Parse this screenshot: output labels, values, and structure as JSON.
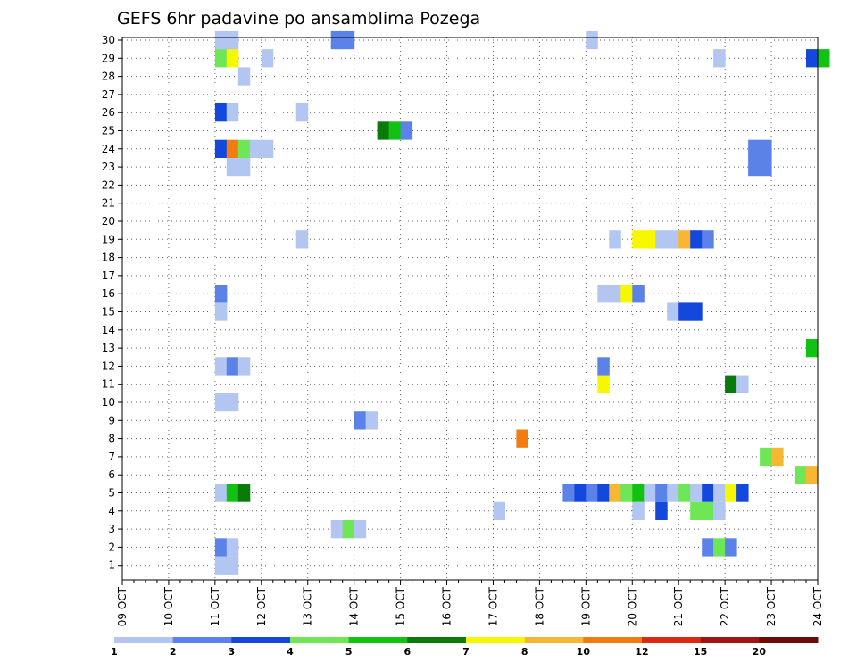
{
  "chart_data": {
    "type": "heatmap",
    "title": "GEFS 6hr padavine po ansamblima Pozega",
    "xlabel": "",
    "ylabel": "",
    "x_ticks": [
      "09 OCT",
      "10 OCT",
      "11 OCT",
      "12 OCT",
      "13 OCT",
      "14 OCT",
      "15 OCT",
      "16 OCT",
      "17 OCT",
      "18 OCT",
      "19 OCT",
      "20 OCT",
      "21 OCT",
      "22 OCT",
      "23 OCT",
      "24 OCT"
    ],
    "y_ticks": [
      "1",
      "2",
      "3",
      "4",
      "5",
      "6",
      "7",
      "8",
      "9",
      "10",
      "11",
      "12",
      "13",
      "14",
      "15",
      "16",
      "17",
      "18",
      "19",
      "20",
      "21",
      "22",
      "23",
      "24",
      "25",
      "26",
      "27",
      "28",
      "29",
      "30"
    ],
    "grid": "dotted",
    "legend_placement": "bottom",
    "x_step": "6hr",
    "legend": {
      "labels": [
        "1",
        "2",
        "3",
        "4",
        "5",
        "6",
        "7",
        "8",
        "10",
        "12",
        "15",
        "20"
      ],
      "colors": [
        "#b3c6f2",
        "#5b82e8",
        "#1448dc",
        "#6ee655",
        "#12c212",
        "#0a7a0a",
        "#f7f700",
        "#f7b733",
        "#f27c10",
        "#dc2a10",
        "#a01414",
        "#6e0a0a"
      ]
    },
    "cells": [
      {
        "m": 1,
        "x": "11 OCT 00Z",
        "v": 1
      },
      {
        "m": 1,
        "x": "11 OCT 06Z",
        "v": 1
      },
      {
        "m": 2,
        "x": "11 OCT 00Z",
        "v": 2
      },
      {
        "m": 2,
        "x": "11 OCT 06Z",
        "v": 1
      },
      {
        "m": 2,
        "x": "21 OCT 12Z",
        "v": 2
      },
      {
        "m": 2,
        "x": "21 OCT 18Z",
        "v": 4
      },
      {
        "m": 2,
        "x": "22 OCT 00Z",
        "v": 2
      },
      {
        "m": 3,
        "x": "13 OCT 12Z",
        "v": 1
      },
      {
        "m": 3,
        "x": "13 OCT 18Z",
        "v": 4
      },
      {
        "m": 3,
        "x": "14 OCT 00Z",
        "v": 1
      },
      {
        "m": 4,
        "x": "17 OCT 00Z",
        "v": 1
      },
      {
        "m": 4,
        "x": "20 OCT 00Z",
        "v": 1
      },
      {
        "m": 4,
        "x": "20 OCT 12Z",
        "v": 3
      },
      {
        "m": 4,
        "x": "21 OCT 06Z",
        "v": 4
      },
      {
        "m": 4,
        "x": "21 OCT 12Z",
        "v": 4
      },
      {
        "m": 4,
        "x": "21 OCT 18Z",
        "v": 1
      },
      {
        "m": 5,
        "x": "11 OCT 00Z",
        "v": 1
      },
      {
        "m": 5,
        "x": "11 OCT 06Z",
        "v": 5
      },
      {
        "m": 5,
        "x": "11 OCT 12Z",
        "v": 6
      },
      {
        "m": 5,
        "x": "18 OCT 12Z",
        "v": 2
      },
      {
        "m": 5,
        "x": "18 OCT 18Z",
        "v": 3
      },
      {
        "m": 5,
        "x": "19 OCT 00Z",
        "v": 2
      },
      {
        "m": 5,
        "x": "19 OCT 06Z",
        "v": 3
      },
      {
        "m": 5,
        "x": "19 OCT 12Z",
        "v": 8
      },
      {
        "m": 5,
        "x": "19 OCT 18Z",
        "v": 4
      },
      {
        "m": 5,
        "x": "20 OCT 00Z",
        "v": 5
      },
      {
        "m": 5,
        "x": "20 OCT 06Z",
        "v": 1
      },
      {
        "m": 5,
        "x": "20 OCT 12Z",
        "v": 2
      },
      {
        "m": 5,
        "x": "20 OCT 18Z",
        "v": 1
      },
      {
        "m": 5,
        "x": "21 OCT 00Z",
        "v": 4
      },
      {
        "m": 5,
        "x": "21 OCT 06Z",
        "v": 1
      },
      {
        "m": 5,
        "x": "21 OCT 12Z",
        "v": 3
      },
      {
        "m": 5,
        "x": "21 OCT 18Z",
        "v": 1
      },
      {
        "m": 5,
        "x": "22 OCT 00Z",
        "v": 7
      },
      {
        "m": 5,
        "x": "22 OCT 06Z",
        "v": 3
      },
      {
        "m": 6,
        "x": "23 OCT 12Z",
        "v": 4
      },
      {
        "m": 6,
        "x": "23 OCT 18Z",
        "v": 8
      },
      {
        "m": 7,
        "x": "22 OCT 18Z",
        "v": 4
      },
      {
        "m": 7,
        "x": "23 OCT 00Z",
        "v": 8
      },
      {
        "m": 8,
        "x": "17 OCT 12Z",
        "v": 10
      },
      {
        "m": 9,
        "x": "14 OCT 00Z",
        "v": 2
      },
      {
        "m": 9,
        "x": "14 OCT 06Z",
        "v": 1
      },
      {
        "m": 10,
        "x": "11 OCT 00Z",
        "v": 1
      },
      {
        "m": 10,
        "x": "11 OCT 06Z",
        "v": 1
      },
      {
        "m": 11,
        "x": "19 OCT 06Z",
        "v": 7
      },
      {
        "m": 11,
        "x": "22 OCT 00Z",
        "v": 6
      },
      {
        "m": 11,
        "x": "22 OCT 06Z",
        "v": 1
      },
      {
        "m": 12,
        "x": "11 OCT 00Z",
        "v": 1
      },
      {
        "m": 12,
        "x": "11 OCT 06Z",
        "v": 2
      },
      {
        "m": 12,
        "x": "11 OCT 12Z",
        "v": 1
      },
      {
        "m": 12,
        "x": "19 OCT 06Z",
        "v": 2
      },
      {
        "m": 13,
        "x": "23 OCT 18Z",
        "v": 5
      },
      {
        "m": 15,
        "x": "11 OCT 00Z",
        "v": 1
      },
      {
        "m": 15,
        "x": "20 OCT 18Z",
        "v": 1
      },
      {
        "m": 15,
        "x": "21 OCT 00Z",
        "v": 3
      },
      {
        "m": 15,
        "x": "21 OCT 06Z",
        "v": 3
      },
      {
        "m": 16,
        "x": "11 OCT 00Z",
        "v": 2
      },
      {
        "m": 16,
        "x": "19 OCT 06Z",
        "v": 1
      },
      {
        "m": 16,
        "x": "19 OCT 12Z",
        "v": 1
      },
      {
        "m": 16,
        "x": "19 OCT 18Z",
        "v": 7
      },
      {
        "m": 16,
        "x": "20 OCT 00Z",
        "v": 2
      },
      {
        "m": 19,
        "x": "12 OCT 18Z",
        "v": 1
      },
      {
        "m": 19,
        "x": "19 OCT 12Z",
        "v": 1
      },
      {
        "m": 19,
        "x": "20 OCT 00Z",
        "v": 7
      },
      {
        "m": 19,
        "x": "20 OCT 06Z",
        "v": 7
      },
      {
        "m": 19,
        "x": "20 OCT 12Z",
        "v": 1
      },
      {
        "m": 19,
        "x": "20 OCT 18Z",
        "v": 1
      },
      {
        "m": 19,
        "x": "21 OCT 00Z",
        "v": 8
      },
      {
        "m": 19,
        "x": "21 OCT 06Z",
        "v": 3
      },
      {
        "m": 19,
        "x": "21 OCT 12Z",
        "v": 2
      },
      {
        "m": 23,
        "x": "11 OCT 06Z",
        "v": 1
      },
      {
        "m": 23,
        "x": "11 OCT 12Z",
        "v": 1
      },
      {
        "m": 23,
        "x": "22 OCT 12Z",
        "v": 2
      },
      {
        "m": 23,
        "x": "22 OCT 18Z",
        "v": 2
      },
      {
        "m": 24,
        "x": "11 OCT 00Z",
        "v": 3
      },
      {
        "m": 24,
        "x": "11 OCT 06Z",
        "v": 10
      },
      {
        "m": 24,
        "x": "11 OCT 12Z",
        "v": 4
      },
      {
        "m": 24,
        "x": "11 OCT 18Z",
        "v": 1
      },
      {
        "m": 24,
        "x": "12 OCT 00Z",
        "v": 1
      },
      {
        "m": 24,
        "x": "22 OCT 12Z",
        "v": 2
      },
      {
        "m": 24,
        "x": "22 OCT 18Z",
        "v": 2
      },
      {
        "m": 25,
        "x": "14 OCT 12Z",
        "v": 6
      },
      {
        "m": 25,
        "x": "14 OCT 18Z",
        "v": 5
      },
      {
        "m": 25,
        "x": "15 OCT 00Z",
        "v": 2
      },
      {
        "m": 26,
        "x": "11 OCT 00Z",
        "v": 3
      },
      {
        "m": 26,
        "x": "11 OCT 06Z",
        "v": 1
      },
      {
        "m": 26,
        "x": "12 OCT 18Z",
        "v": 1
      },
      {
        "m": 28,
        "x": "11 OCT 12Z",
        "v": 1
      },
      {
        "m": 29,
        "x": "11 OCT 00Z",
        "v": 4
      },
      {
        "m": 29,
        "x": "11 OCT 06Z",
        "v": 7
      },
      {
        "m": 29,
        "x": "12 OCT 00Z",
        "v": 1
      },
      {
        "m": 29,
        "x": "21 OCT 18Z",
        "v": 1
      },
      {
        "m": 29,
        "x": "23 OCT 18Z",
        "v": 3
      },
      {
        "m": 29,
        "x": "24 OCT 00Z",
        "v": 5
      },
      {
        "m": 30,
        "x": "11 OCT 00Z",
        "v": 1
      },
      {
        "m": 30,
        "x": "11 OCT 06Z",
        "v": 1
      },
      {
        "m": 30,
        "x": "13 OCT 12Z",
        "v": 2
      },
      {
        "m": 30,
        "x": "13 OCT 18Z",
        "v": 2
      },
      {
        "m": 30,
        "x": "19 OCT 00Z",
        "v": 1
      }
    ]
  }
}
